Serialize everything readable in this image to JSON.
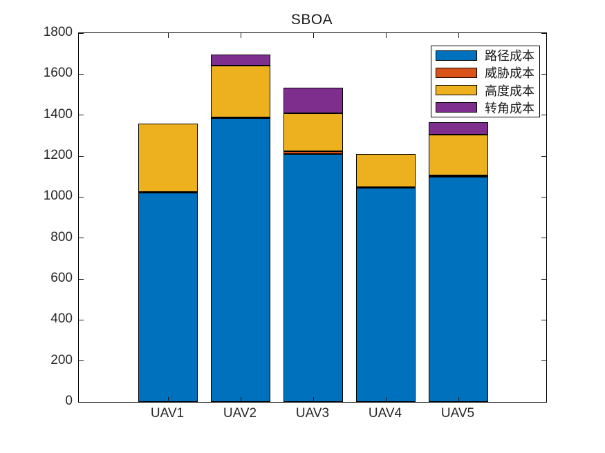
{
  "figure": {
    "background": "#ffffff",
    "axis_color": "#262626",
    "bar_edge_color": "#000000"
  },
  "chart_data": {
    "type": "bar",
    "stacked": true,
    "title": "SBOA",
    "categories": [
      "UAV1",
      "UAV2",
      "UAV3",
      "UAV4",
      "UAV5"
    ],
    "series": [
      {
        "name": "路径成本",
        "color": "#0072BD",
        "values": [
          1020,
          1385,
          1210,
          1045,
          1100
        ]
      },
      {
        "name": "威胁成本",
        "color": "#D95319",
        "values": [
          5,
          5,
          15,
          5,
          5
        ]
      },
      {
        "name": "高度成本",
        "color": "#EDB120",
        "values": [
          335,
          250,
          185,
          160,
          200
        ]
      },
      {
        "name": "转角成本",
        "color": "#7E2F8E",
        "values": [
          0,
          55,
          125,
          0,
          60
        ]
      }
    ],
    "totals": [
      1360,
      1695,
      1535,
      1210,
      1365
    ],
    "ylim": [
      0,
      1800
    ],
    "yticks": [
      0,
      200,
      400,
      600,
      800,
      1000,
      1200,
      1400,
      1600,
      1800
    ],
    "xlabel": "",
    "ylabel": "",
    "grid": false,
    "legend": {
      "position": "top-right",
      "entries": [
        "路径成本",
        "威胁成本",
        "高度成本",
        "转角成本"
      ]
    }
  }
}
